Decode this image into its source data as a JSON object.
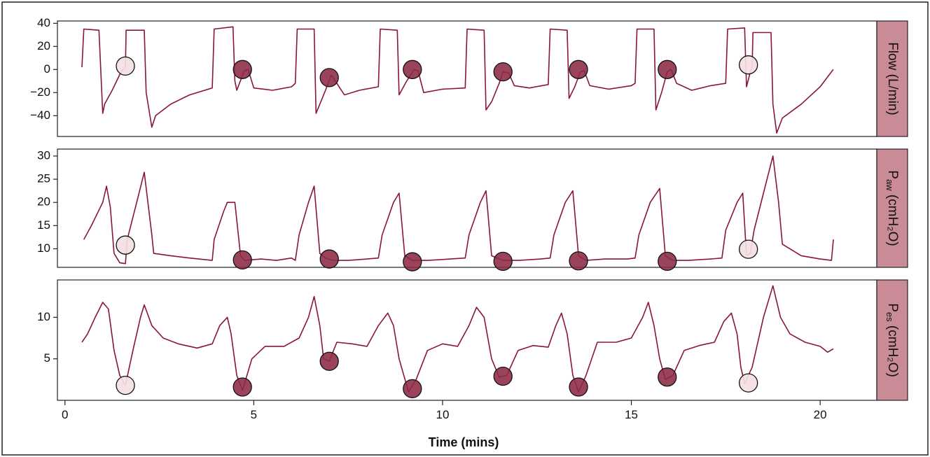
{
  "colors": {
    "line": "#8a1538",
    "strip_fill": "#c98b96",
    "marker_dark": "#8c2a45",
    "marker_light": "#f3dfe2",
    "frame": "#222222"
  },
  "chart_data": {
    "type": "line",
    "xlabel": "Time (mins)",
    "xlim": [
      -0.2,
      21.5
    ],
    "xticks": [
      0,
      5,
      10,
      15,
      20
    ],
    "xtick_labels": [
      "0",
      "5",
      "10",
      "15",
      "20"
    ],
    "panels": [
      {
        "id": "flow",
        "strip": {
          "main": "Flow (L/min)",
          "sub": "",
          "tail": ""
        },
        "ylim": [
          -58,
          42
        ],
        "yticks": [
          -40,
          -20,
          0,
          20,
          40
        ],
        "ytick_labels": [
          "−40",
          "−20",
          "0",
          "20",
          "40"
        ],
        "series": [
          [
            0.45,
            2
          ],
          [
            0.5,
            35
          ],
          [
            0.9,
            34
          ],
          [
            1.0,
            -38
          ],
          [
            1.05,
            -30
          ],
          [
            1.25,
            -18
          ],
          [
            1.5,
            -1
          ],
          [
            1.6,
            2
          ],
          [
            1.62,
            34
          ],
          [
            2.1,
            34
          ],
          [
            2.15,
            -20
          ],
          [
            2.3,
            -50
          ],
          [
            2.4,
            -40
          ],
          [
            2.8,
            -30
          ],
          [
            3.3,
            -22
          ],
          [
            3.9,
            -16
          ],
          [
            3.95,
            35
          ],
          [
            4.45,
            37
          ],
          [
            4.5,
            -10
          ],
          [
            4.55,
            -18
          ],
          [
            4.75,
            -1
          ],
          [
            4.85,
            0
          ],
          [
            5.0,
            -16
          ],
          [
            5.5,
            -18
          ],
          [
            6.0,
            -15
          ],
          [
            6.1,
            -12
          ],
          [
            6.15,
            35
          ],
          [
            6.6,
            35
          ],
          [
            6.65,
            -38
          ],
          [
            6.75,
            -30
          ],
          [
            6.9,
            -18
          ],
          [
            7.05,
            -5
          ],
          [
            7.2,
            -12
          ],
          [
            7.4,
            -22
          ],
          [
            7.8,
            -18
          ],
          [
            8.3,
            -15
          ],
          [
            8.35,
            35
          ],
          [
            8.8,
            34
          ],
          [
            8.85,
            -22
          ],
          [
            9.05,
            -10
          ],
          [
            9.25,
            0
          ],
          [
            9.35,
            -1
          ],
          [
            9.5,
            -20
          ],
          [
            10.0,
            -17
          ],
          [
            10.6,
            -16
          ],
          [
            10.65,
            35
          ],
          [
            11.1,
            34
          ],
          [
            11.15,
            -35
          ],
          [
            11.3,
            -28
          ],
          [
            11.5,
            -12
          ],
          [
            11.6,
            -2
          ],
          [
            11.75,
            -3
          ],
          [
            11.9,
            -14
          ],
          [
            12.3,
            -16
          ],
          [
            12.8,
            -13
          ],
          [
            12.85,
            35
          ],
          [
            13.3,
            34
          ],
          [
            13.35,
            -25
          ],
          [
            13.5,
            -15
          ],
          [
            13.65,
            -2
          ],
          [
            13.75,
            -1
          ],
          [
            13.9,
            -14
          ],
          [
            14.4,
            -17
          ],
          [
            15.0,
            -14
          ],
          [
            15.1,
            -12
          ],
          [
            15.15,
            35
          ],
          [
            15.6,
            35
          ],
          [
            15.65,
            -35
          ],
          [
            15.8,
            -20
          ],
          [
            15.95,
            -2
          ],
          [
            16.05,
            0
          ],
          [
            16.2,
            -12
          ],
          [
            16.6,
            -18
          ],
          [
            17.1,
            -14
          ],
          [
            17.5,
            -12
          ],
          [
            17.55,
            35
          ],
          [
            18.0,
            36
          ],
          [
            18.05,
            -15
          ],
          [
            18.2,
            4
          ],
          [
            18.22,
            32
          ],
          [
            18.7,
            32
          ],
          [
            18.75,
            -30
          ],
          [
            18.85,
            -55
          ],
          [
            19.0,
            -42
          ],
          [
            19.5,
            -30
          ],
          [
            20.0,
            -15
          ],
          [
            20.3,
            -2
          ],
          [
            20.35,
            0
          ]
        ],
        "markers": [
          {
            "x": 1.6,
            "y": 3,
            "shade": "light"
          },
          {
            "x": 4.7,
            "y": 0,
            "shade": "dark"
          },
          {
            "x": 7.0,
            "y": -7,
            "shade": "dark"
          },
          {
            "x": 9.2,
            "y": 0,
            "shade": "dark"
          },
          {
            "x": 11.6,
            "y": -2,
            "shade": "dark"
          },
          {
            "x": 13.6,
            "y": 0,
            "shade": "dark"
          },
          {
            "x": 15.95,
            "y": 0,
            "shade": "dark"
          },
          {
            "x": 18.1,
            "y": 4,
            "shade": "light"
          }
        ]
      },
      {
        "id": "paw",
        "strip": {
          "main": "P",
          "sub": "aw",
          "tail": " (cmH₂O)"
        },
        "ylim": [
          6,
          31.5
        ],
        "yticks": [
          10,
          15,
          20,
          25,
          30
        ],
        "ytick_labels": [
          "10",
          "15",
          "20",
          "25",
          "30"
        ],
        "series": [
          [
            0.5,
            12
          ],
          [
            0.7,
            15
          ],
          [
            1.0,
            20
          ],
          [
            1.1,
            23.5
          ],
          [
            1.2,
            19
          ],
          [
            1.3,
            9
          ],
          [
            1.45,
            7
          ],
          [
            1.6,
            6.8
          ],
          [
            1.65,
            12
          ],
          [
            1.9,
            20
          ],
          [
            2.1,
            26.5
          ],
          [
            2.3,
            13
          ],
          [
            2.35,
            9
          ],
          [
            2.8,
            8.5
          ],
          [
            3.3,
            8
          ],
          [
            3.9,
            7.5
          ],
          [
            3.95,
            12
          ],
          [
            4.2,
            18
          ],
          [
            4.3,
            20
          ],
          [
            4.5,
            20
          ],
          [
            4.65,
            8.5
          ],
          [
            4.75,
            7.5
          ],
          [
            5.2,
            7.8
          ],
          [
            5.6,
            7.5
          ],
          [
            6.0,
            8
          ],
          [
            6.1,
            7.5
          ],
          [
            6.2,
            13
          ],
          [
            6.45,
            20
          ],
          [
            6.6,
            23.5
          ],
          [
            6.75,
            9
          ],
          [
            6.9,
            8
          ],
          [
            7.1,
            7.5
          ],
          [
            7.5,
            7.5
          ],
          [
            8.0,
            7.8
          ],
          [
            8.3,
            8
          ],
          [
            8.4,
            13
          ],
          [
            8.7,
            20
          ],
          [
            8.85,
            22
          ],
          [
            9.0,
            8.5
          ],
          [
            9.2,
            7.5
          ],
          [
            9.6,
            7.5
          ],
          [
            10.2,
            7.8
          ],
          [
            10.6,
            8
          ],
          [
            10.7,
            13
          ],
          [
            11.0,
            20
          ],
          [
            11.15,
            22.5
          ],
          [
            11.3,
            8.5
          ],
          [
            11.6,
            7.5
          ],
          [
            12.0,
            7.5
          ],
          [
            12.6,
            7.8
          ],
          [
            12.85,
            8
          ],
          [
            12.95,
            13
          ],
          [
            13.25,
            20
          ],
          [
            13.45,
            22.5
          ],
          [
            13.6,
            8.5
          ],
          [
            13.8,
            7.5
          ],
          [
            14.3,
            7.8
          ],
          [
            14.9,
            7.8
          ],
          [
            15.1,
            8
          ],
          [
            15.2,
            13
          ],
          [
            15.5,
            20
          ],
          [
            15.75,
            23
          ],
          [
            15.9,
            8.5
          ],
          [
            16.1,
            7.5
          ],
          [
            16.5,
            7.5
          ],
          [
            17.1,
            7.8
          ],
          [
            17.4,
            8
          ],
          [
            17.5,
            14
          ],
          [
            17.8,
            20
          ],
          [
            17.95,
            22
          ],
          [
            18.05,
            8.5
          ],
          [
            18.15,
            9
          ],
          [
            18.25,
            14
          ],
          [
            18.5,
            22
          ],
          [
            18.75,
            30
          ],
          [
            18.9,
            20
          ],
          [
            19.0,
            11
          ],
          [
            19.5,
            8.5
          ],
          [
            20.0,
            7.8
          ],
          [
            20.3,
            7.5
          ],
          [
            20.35,
            12
          ]
        ],
        "markers": [
          {
            "x": 1.6,
            "y": 10.8,
            "shade": "light"
          },
          {
            "x": 4.7,
            "y": 7.6,
            "shade": "dark"
          },
          {
            "x": 7.0,
            "y": 7.8,
            "shade": "dark"
          },
          {
            "x": 9.2,
            "y": 7.2,
            "shade": "dark"
          },
          {
            "x": 11.6,
            "y": 7.3,
            "shade": "dark"
          },
          {
            "x": 13.6,
            "y": 7.4,
            "shade": "dark"
          },
          {
            "x": 15.95,
            "y": 7.3,
            "shade": "dark"
          },
          {
            "x": 18.1,
            "y": 9.9,
            "shade": "light"
          }
        ]
      },
      {
        "id": "pes",
        "strip": {
          "main": "P",
          "sub": "es",
          "tail": " (cmH₂O)"
        },
        "ylim": [
          0,
          14.5
        ],
        "yticks": [
          5,
          10
        ],
        "ytick_labels": [
          "5",
          "10"
        ],
        "series": [
          [
            0.45,
            7
          ],
          [
            0.6,
            8
          ],
          [
            0.8,
            10
          ],
          [
            1.0,
            11.8
          ],
          [
            1.15,
            11
          ],
          [
            1.3,
            6
          ],
          [
            1.45,
            3
          ],
          [
            1.6,
            1.8
          ],
          [
            1.8,
            6
          ],
          [
            2.0,
            10
          ],
          [
            2.1,
            11.5
          ],
          [
            2.3,
            9
          ],
          [
            2.6,
            7.5
          ],
          [
            3.0,
            6.8
          ],
          [
            3.5,
            6.3
          ],
          [
            3.9,
            6.8
          ],
          [
            4.1,
            9
          ],
          [
            4.3,
            10
          ],
          [
            4.4,
            8
          ],
          [
            4.55,
            3
          ],
          [
            4.7,
            1.2
          ],
          [
            4.95,
            5
          ],
          [
            5.3,
            6.5
          ],
          [
            5.8,
            6.5
          ],
          [
            6.2,
            7.5
          ],
          [
            6.45,
            10
          ],
          [
            6.6,
            12.5
          ],
          [
            6.75,
            9
          ],
          [
            6.85,
            5
          ],
          [
            7.0,
            4.7
          ],
          [
            7.2,
            7
          ],
          [
            7.6,
            6.8
          ],
          [
            8.0,
            6.5
          ],
          [
            8.3,
            9
          ],
          [
            8.55,
            10.5
          ],
          [
            8.7,
            9
          ],
          [
            8.85,
            5
          ],
          [
            9.1,
            1
          ],
          [
            9.3,
            2.5
          ],
          [
            9.6,
            6
          ],
          [
            10.0,
            6.8
          ],
          [
            10.4,
            6.5
          ],
          [
            10.7,
            9
          ],
          [
            10.9,
            11.2
          ],
          [
            11.1,
            10
          ],
          [
            11.3,
            5
          ],
          [
            11.5,
            2.8
          ],
          [
            11.7,
            3
          ],
          [
            12.0,
            6
          ],
          [
            12.4,
            6.6
          ],
          [
            12.8,
            6.4
          ],
          [
            13.0,
            9
          ],
          [
            13.15,
            10.5
          ],
          [
            13.3,
            8
          ],
          [
            13.45,
            3
          ],
          [
            13.6,
            1
          ],
          [
            13.8,
            3
          ],
          [
            14.1,
            7
          ],
          [
            14.6,
            7
          ],
          [
            15.0,
            7.5
          ],
          [
            15.3,
            10
          ],
          [
            15.45,
            11.8
          ],
          [
            15.6,
            9
          ],
          [
            15.75,
            5
          ],
          [
            15.9,
            2.5
          ],
          [
            16.1,
            3
          ],
          [
            16.4,
            6
          ],
          [
            16.8,
            6.6
          ],
          [
            17.2,
            7
          ],
          [
            17.45,
            9.5
          ],
          [
            17.65,
            10.5
          ],
          [
            17.8,
            8
          ],
          [
            17.9,
            4
          ],
          [
            18.0,
            2
          ],
          [
            18.2,
            4
          ],
          [
            18.5,
            10
          ],
          [
            18.75,
            13.8
          ],
          [
            18.95,
            10
          ],
          [
            19.2,
            8
          ],
          [
            19.6,
            7
          ],
          [
            20.0,
            6.5
          ],
          [
            20.2,
            5.8
          ],
          [
            20.35,
            6.2
          ]
        ],
        "markers": [
          {
            "x": 1.6,
            "y": 1.8,
            "shade": "light"
          },
          {
            "x": 4.7,
            "y": 1.6,
            "shade": "dark"
          },
          {
            "x": 7.0,
            "y": 4.7,
            "shade": "dark"
          },
          {
            "x": 9.2,
            "y": 1.4,
            "shade": "dark"
          },
          {
            "x": 11.6,
            "y": 2.9,
            "shade": "dark"
          },
          {
            "x": 13.6,
            "y": 1.6,
            "shade": "dark"
          },
          {
            "x": 15.95,
            "y": 2.8,
            "shade": "dark"
          },
          {
            "x": 18.1,
            "y": 2.1,
            "shade": "light"
          }
        ]
      }
    ]
  }
}
